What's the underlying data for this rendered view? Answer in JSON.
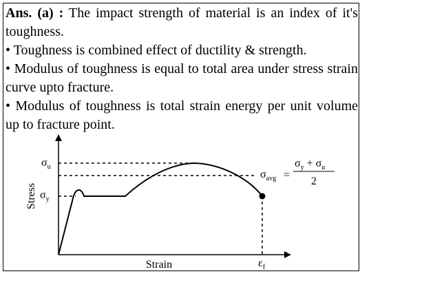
{
  "answer": {
    "label": "Ans. (a) :",
    "intro": " The impact strength of material is an index of it's toughness."
  },
  "bullets": [
    {
      "marker": "•",
      "text": " Toughness is combined effect of ductility & strength."
    },
    {
      "marker": "•",
      "text": " Modulus of toughness is equal to total area under stress strain curve upto fracture."
    },
    {
      "marker": "•",
      "text": " Modulus of toughness is total strain energy per unit volume up to fracture point."
    }
  ],
  "graph": {
    "xlabel": "Strain",
    "ylabel": "Stress",
    "sigma_u": {
      "symbol": "σ",
      "sub": "u"
    },
    "sigma_y": {
      "symbol": "σ",
      "sub": "y"
    },
    "sigma_avg": {
      "symbol": "σ",
      "sub": "avg"
    },
    "epsilon_f": {
      "symbol": "ε",
      "sub": "f"
    },
    "equals": "=",
    "numerator": {
      "s1": "σ",
      "s1_sub": "y",
      "plus": " + ",
      "s2": "σ",
      "s2_sub": "u"
    },
    "denominator": "2"
  }
}
